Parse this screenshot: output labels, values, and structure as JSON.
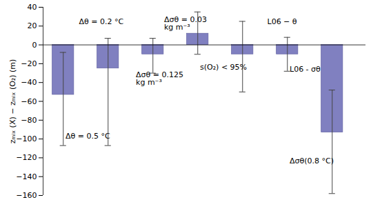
{
  "chart_data": {
    "type": "bar",
    "categories": [
      null,
      null,
      null,
      null,
      null,
      null,
      null
    ],
    "values": [
      -53,
      -25,
      -10,
      12,
      -10,
      -10,
      -93
    ],
    "error_low": [
      -107,
      -107,
      -30,
      -10,
      -50,
      -28,
      -158
    ],
    "error_high": [
      -8,
      7,
      7,
      35,
      25,
      8,
      -48
    ],
    "color": "#8080c0",
    "ylabel": "zₘᵢₓ (X) − zₘᵢₓ (O₂) (m)",
    "ylim": [
      -160,
      40
    ],
    "yticks": [
      40,
      20,
      0,
      -20,
      -40,
      -60,
      -80,
      -100,
      -120,
      -140,
      -160
    ],
    "tick_labels": "y",
    "grid": false,
    "annotations": [
      {
        "text": "Δθ = 0.2 °C",
        "x": 1.35,
        "y": 25
      },
      {
        "text": "Δθ = 0.5 °C",
        "x": 1.05,
        "y": -97
      },
      {
        "text": "Δσθ = 0.03\nkg m⁻³",
        "x": 3.25,
        "y": 23
      },
      {
        "text": "Δσθ = 0.125\nkg m⁻³",
        "x": 2.62,
        "y": -36
      },
      {
        "text": "s(O₂) < 95%",
        "x": 4.05,
        "y": -24
      },
      {
        "text": "L06 − θ",
        "x": 5.55,
        "y": 25
      },
      {
        "text": "L06 - σθ",
        "x": 6.05,
        "y": -26
      },
      {
        "text": "Δσθ(0.8 °C)",
        "x": 6.05,
        "y": -123
      }
    ]
  }
}
